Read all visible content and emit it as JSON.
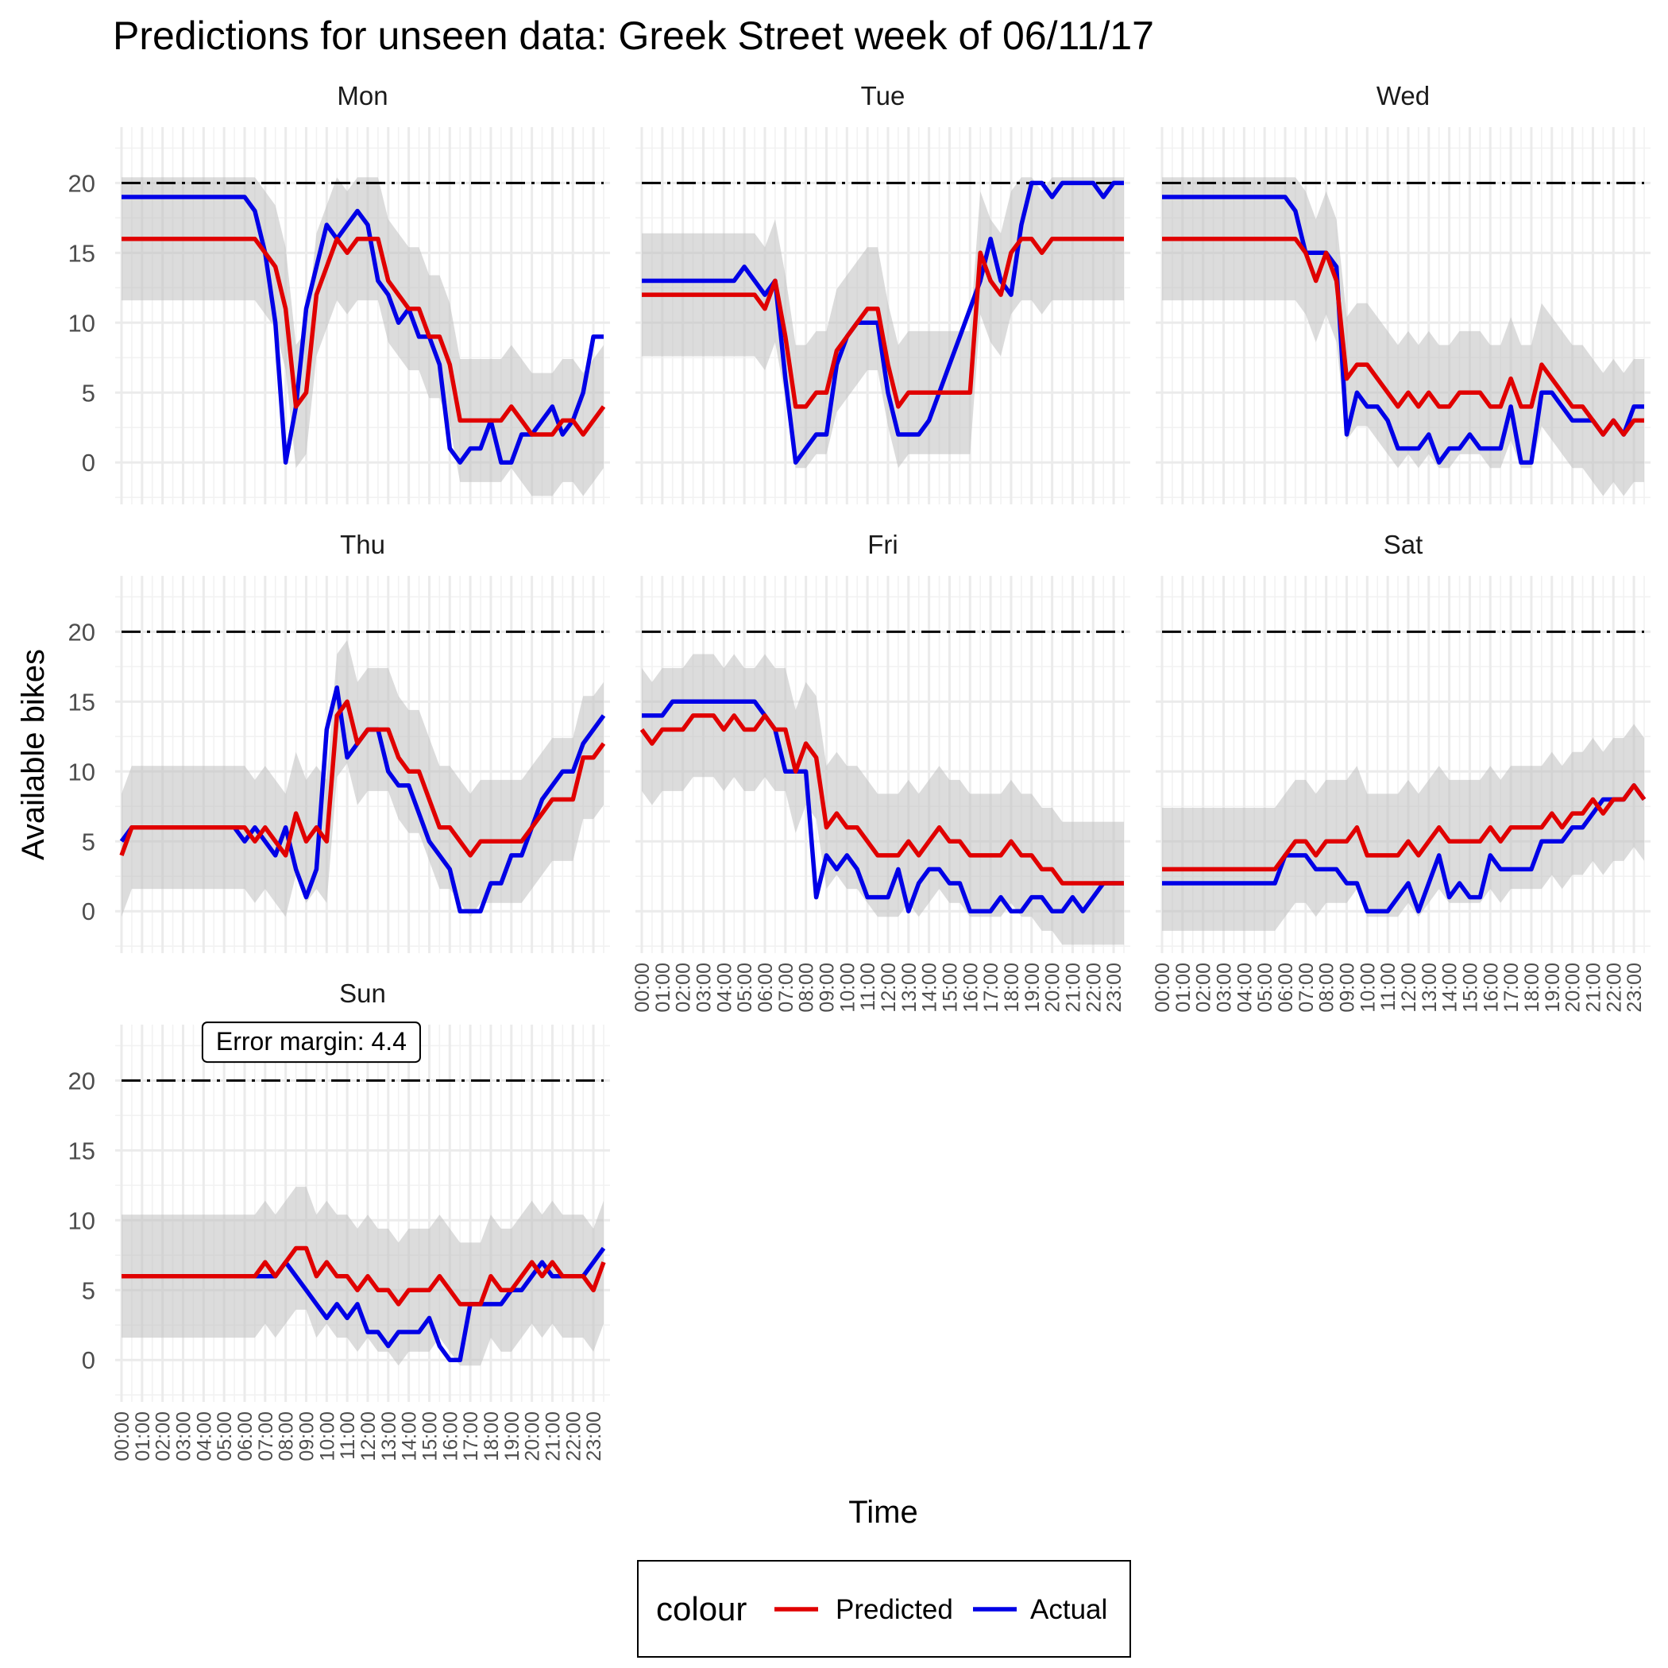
{
  "chart_data": {
    "type": "line",
    "title": "Predictions for unseen data: Greek Street week of 06/11/17",
    "xlabel": "Time",
    "ylabel": "Available bikes",
    "ylim": [
      -3,
      24
    ],
    "y_ticks": [
      0,
      5,
      10,
      15,
      20
    ],
    "x_ticks": [
      "00:00",
      "01:00",
      "02:00",
      "03:00",
      "04:00",
      "05:00",
      "06:00",
      "07:00",
      "08:00",
      "09:00",
      "10:00",
      "11:00",
      "12:00",
      "13:00",
      "14:00",
      "15:00",
      "16:00",
      "17:00",
      "18:00",
      "19:00",
      "20:00",
      "21:00",
      "22:00",
      "23:00"
    ],
    "x_step_hours": 0.5,
    "capacity_line": 20,
    "error_margin": 4.4,
    "annotation": "Error margin: 4.4",
    "legend": {
      "title": "colour",
      "position": "bottom",
      "entries": [
        {
          "name": "Predicted",
          "color": "#e00000"
        },
        {
          "name": "Actual",
          "color": "#0000e6"
        }
      ]
    },
    "colors": {
      "predicted": "#e00000",
      "actual": "#0000e6",
      "band": "#bfbfbf",
      "grid": "#ebebeb"
    },
    "grid": true,
    "facets": [
      {
        "label": "Mon",
        "predicted": [
          16,
          16,
          16,
          16,
          16,
          16,
          16,
          16,
          16,
          16,
          16,
          16,
          16,
          16,
          15,
          14,
          11,
          4,
          5,
          12,
          14,
          16,
          15,
          16,
          16,
          16,
          13,
          12,
          11,
          11,
          9,
          9,
          7,
          3,
          3,
          3,
          3,
          3,
          4,
          3,
          2,
          2,
          2,
          3,
          3,
          2,
          3,
          4
        ],
        "actual": [
          19,
          19,
          19,
          19,
          19,
          19,
          19,
          19,
          19,
          19,
          19,
          19,
          19,
          18,
          15,
          10,
          0,
          4,
          11,
          14,
          17,
          16,
          17,
          18,
          17,
          13,
          12,
          10,
          11,
          9,
          9,
          7,
          1,
          0,
          1,
          1,
          3,
          0,
          0,
          2,
          2,
          3,
          4,
          2,
          3,
          5,
          9,
          9
        ]
      },
      {
        "label": "Tue",
        "predicted": [
          12,
          12,
          12,
          12,
          12,
          12,
          12,
          12,
          12,
          12,
          12,
          12,
          11,
          13,
          9,
          4,
          4,
          5,
          5,
          8,
          9,
          10,
          11,
          11,
          7,
          4,
          5,
          5,
          5,
          5,
          5,
          5,
          5,
          15,
          13,
          12,
          15,
          16,
          16,
          15,
          16,
          16,
          16,
          16,
          16,
          16,
          16,
          16
        ],
        "actual": [
          13,
          13,
          13,
          13,
          13,
          13,
          13,
          13,
          13,
          13,
          14,
          13,
          12,
          13,
          6,
          0,
          1,
          2,
          2,
          7,
          9,
          10,
          10,
          10,
          5,
          2,
          2,
          2,
          3,
          5,
          7,
          9,
          11,
          13,
          16,
          13,
          12,
          17,
          20,
          20,
          19,
          20,
          20,
          20,
          20,
          19,
          20,
          20
        ]
      },
      {
        "label": "Wed",
        "predicted": [
          16,
          16,
          16,
          16,
          16,
          16,
          16,
          16,
          16,
          16,
          16,
          16,
          16,
          16,
          15,
          13,
          15,
          13,
          6,
          7,
          7,
          6,
          5,
          4,
          5,
          4,
          5,
          4,
          4,
          5,
          5,
          5,
          4,
          4,
          6,
          4,
          4,
          7,
          6,
          5,
          4,
          4,
          3,
          2,
          3,
          2,
          3,
          3
        ],
        "actual": [
          19,
          19,
          19,
          19,
          19,
          19,
          19,
          19,
          19,
          19,
          19,
          19,
          19,
          18,
          15,
          15,
          15,
          14,
          2,
          5,
          4,
          4,
          3,
          1,
          1,
          1,
          2,
          0,
          1,
          1,
          2,
          1,
          1,
          1,
          4,
          0,
          0,
          5,
          5,
          4,
          3,
          3,
          3,
          2,
          3,
          2,
          4,
          4
        ]
      },
      {
        "label": "Thu",
        "predicted": [
          4,
          6,
          6,
          6,
          6,
          6,
          6,
          6,
          6,
          6,
          6,
          6,
          6,
          5,
          6,
          5,
          4,
          7,
          5,
          6,
          5,
          14,
          15,
          12,
          13,
          13,
          13,
          11,
          10,
          10,
          8,
          6,
          6,
          5,
          4,
          5,
          5,
          5,
          5,
          5,
          6,
          7,
          8,
          8,
          8,
          11,
          11,
          12
        ],
        "actual": [
          5,
          6,
          6,
          6,
          6,
          6,
          6,
          6,
          6,
          6,
          6,
          6,
          5,
          6,
          5,
          4,
          6,
          3,
          1,
          3,
          13,
          16,
          11,
          12,
          13,
          13,
          10,
          9,
          9,
          7,
          5,
          4,
          3,
          0,
          0,
          0,
          2,
          2,
          4,
          4,
          6,
          8,
          9,
          10,
          10,
          12,
          13,
          14
        ]
      },
      {
        "label": "Fri",
        "predicted": [
          13,
          12,
          13,
          13,
          13,
          14,
          14,
          14,
          13,
          14,
          13,
          13,
          14,
          13,
          13,
          10,
          12,
          11,
          6,
          7,
          6,
          6,
          5,
          4,
          4,
          4,
          5,
          4,
          5,
          6,
          5,
          5,
          4,
          4,
          4,
          4,
          5,
          4,
          4,
          3,
          3,
          2,
          2,
          2,
          2,
          2,
          2,
          2
        ],
        "actual": [
          14,
          14,
          14,
          15,
          15,
          15,
          15,
          15,
          15,
          15,
          15,
          15,
          14,
          13,
          10,
          10,
          10,
          1,
          4,
          3,
          4,
          3,
          1,
          1,
          1,
          3,
          0,
          2,
          3,
          3,
          2,
          2,
          0,
          0,
          0,
          1,
          0,
          0,
          1,
          1,
          0,
          0,
          1,
          0,
          1,
          2,
          2,
          2
        ]
      },
      {
        "label": "Sat",
        "predicted": [
          3,
          3,
          3,
          3,
          3,
          3,
          3,
          3,
          3,
          3,
          3,
          3,
          4,
          5,
          5,
          4,
          5,
          5,
          5,
          6,
          4,
          4,
          4,
          4,
          5,
          4,
          5,
          6,
          5,
          5,
          5,
          5,
          6,
          5,
          6,
          6,
          6,
          6,
          7,
          6,
          7,
          7,
          8,
          7,
          8,
          8,
          9,
          8
        ],
        "actual": [
          2,
          2,
          2,
          2,
          2,
          2,
          2,
          2,
          2,
          2,
          2,
          2,
          4,
          4,
          4,
          3,
          3,
          3,
          2,
          2,
          0,
          0,
          0,
          1,
          2,
          0,
          2,
          4,
          1,
          2,
          1,
          1,
          4,
          3,
          3,
          3,
          3,
          5,
          5,
          5,
          6,
          6,
          7,
          8,
          8,
          8,
          9,
          8
        ]
      },
      {
        "label": "Sun",
        "predicted": [
          6,
          6,
          6,
          6,
          6,
          6,
          6,
          6,
          6,
          6,
          6,
          6,
          6,
          6,
          7,
          6,
          7,
          8,
          8,
          6,
          7,
          6,
          6,
          5,
          6,
          5,
          5,
          4,
          5,
          5,
          5,
          6,
          5,
          4,
          4,
          4,
          6,
          5,
          5,
          6,
          7,
          6,
          7,
          6,
          6,
          6,
          5,
          7
        ],
        "actual": [
          6,
          6,
          6,
          6,
          6,
          6,
          6,
          6,
          6,
          6,
          6,
          6,
          6,
          6,
          6,
          6,
          7,
          6,
          5,
          4,
          3,
          4,
          3,
          4,
          2,
          2,
          1,
          2,
          2,
          2,
          3,
          1,
          0,
          0,
          4,
          4,
          4,
          4,
          5,
          5,
          6,
          7,
          6,
          6,
          6,
          6,
          7,
          8
        ]
      }
    ]
  }
}
